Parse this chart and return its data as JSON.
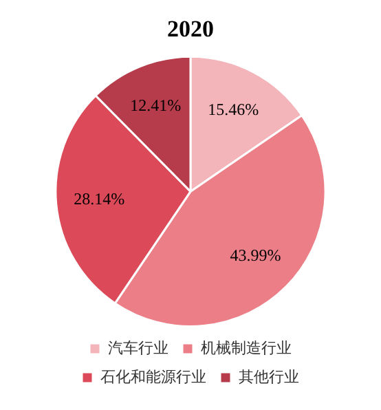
{
  "chart_data": {
    "type": "pie",
    "title": "2020",
    "categories": [
      "汽车行业",
      "机械制造行业",
      "石化和能源行业",
      "其他行业"
    ],
    "values": [
      15.46,
      43.99,
      28.14,
      12.41
    ],
    "colors": [
      "#f3b5ba",
      "#ec7e87",
      "#dc4a59",
      "#b73c4b"
    ],
    "value_labels": [
      "15.46%",
      "43.99%",
      "28.14%",
      "12.41%"
    ],
    "legend": "bottom"
  }
}
